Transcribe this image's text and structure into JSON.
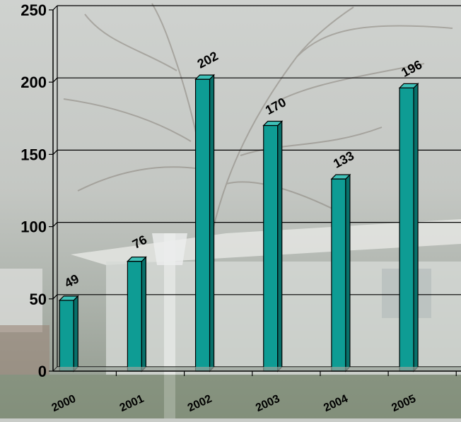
{
  "chart_data": {
    "type": "bar",
    "categories": [
      "2000",
      "2001",
      "2002",
      "2003",
      "2004",
      "2005"
    ],
    "values": [
      49,
      76,
      202,
      170,
      133,
      196
    ],
    "title": "",
    "xlabel": "",
    "ylabel": "",
    "ylim": [
      0,
      250
    ],
    "yticks": [
      0,
      50,
      100,
      150,
      200,
      250
    ],
    "grid": true,
    "legend": "none",
    "style": "3d-columns",
    "bar_color": "#0e9c94",
    "bar_side_color": "#08706a",
    "bar_top_color": "#3ec1b8",
    "data_labels": true
  }
}
